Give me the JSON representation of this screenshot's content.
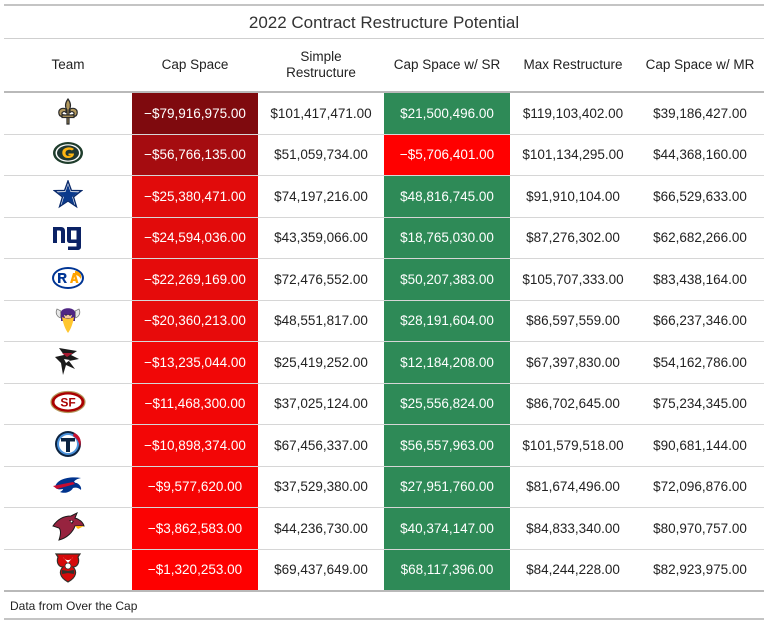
{
  "title": "2022 Contract Restructure Potential",
  "headers": {
    "team": "Team",
    "cap_space": "Cap Space",
    "simple_line1": "Simple",
    "simple_line2": "Restructure",
    "cap_sr": "Cap Space w/ SR",
    "max_restructure": "Max Restructure",
    "cap_mr": "Cap Space w/ MR"
  },
  "rows": [
    {
      "team": "saints-logo-icon",
      "cap": "−$79,916,975.00",
      "cap_color": "#7f0a0e",
      "simple": "$101,417,471.00",
      "sr": "$21,500,496.00",
      "sr_color": "#2e8a57",
      "max": "$119,103,402.00",
      "mr": "$39,186,427.00"
    },
    {
      "team": "packers-logo-icon",
      "cap": "−$56,766,135.00",
      "cap_color": "#a50c10",
      "simple": "$51,059,734.00",
      "sr": "−$5,706,401.00",
      "sr_color": "#ff0000",
      "max": "$101,134,295.00",
      "mr": "$44,368,160.00"
    },
    {
      "team": "cowboys-logo-icon",
      "cap": "−$25,380,471.00",
      "cap_color": "#e10b0b",
      "simple": "$74,197,216.00",
      "sr": "$48,816,745.00",
      "sr_color": "#2e8a57",
      "max": "$91,910,104.00",
      "mr": "$66,529,633.00"
    },
    {
      "team": "giants-logo-icon",
      "cap": "−$24,594,036.00",
      "cap_color": "#e20b0b",
      "simple": "$43,359,066.00",
      "sr": "$18,765,030.00",
      "sr_color": "#2e8a57",
      "max": "$87,276,302.00",
      "mr": "$62,682,266.00"
    },
    {
      "team": "rams-logo-icon",
      "cap": "−$22,269,169.00",
      "cap_color": "#e50b0b",
      "simple": "$72,476,552.00",
      "sr": "$50,207,383.00",
      "sr_color": "#2e8a57",
      "max": "$105,707,333.00",
      "mr": "$83,438,164.00"
    },
    {
      "team": "vikings-logo-icon",
      "cap": "−$20,360,213.00",
      "cap_color": "#e70b0b",
      "simple": "$48,551,817.00",
      "sr": "$28,191,604.00",
      "sr_color": "#2e8a57",
      "max": "$86,597,559.00",
      "mr": "$66,237,346.00"
    },
    {
      "team": "falcons-logo-icon",
      "cap": "−$13,235,044.00",
      "cap_color": "#f10707",
      "simple": "$25,419,252.00",
      "sr": "$12,184,208.00",
      "sr_color": "#2e8a57",
      "max": "$67,397,830.00",
      "mr": "$54,162,786.00"
    },
    {
      "team": "49ers-logo-icon",
      "cap": "−$11,468,300.00",
      "cap_color": "#f20606",
      "simple": "$37,025,124.00",
      "sr": "$25,556,824.00",
      "sr_color": "#2e8a57",
      "max": "$86,702,645.00",
      "mr": "$75,234,345.00"
    },
    {
      "team": "titans-logo-icon",
      "cap": "−$10,898,374.00",
      "cap_color": "#f30606",
      "simple": "$67,456,337.00",
      "sr": "$56,557,963.00",
      "sr_color": "#2e8a57",
      "max": "$101,579,518.00",
      "mr": "$90,681,144.00"
    },
    {
      "team": "bills-logo-icon",
      "cap": "−$9,577,620.00",
      "cap_color": "#f60404",
      "simple": "$37,529,380.00",
      "sr": "$27,951,760.00",
      "sr_color": "#2e8a57",
      "max": "$81,674,496.00",
      "mr": "$72,096,876.00"
    },
    {
      "team": "cardinals-logo-icon",
      "cap": "−$3,862,583.00",
      "cap_color": "#fb0202",
      "simple": "$44,236,730.00",
      "sr": "$40,374,147.00",
      "sr_color": "#2e8a57",
      "max": "$84,833,340.00",
      "mr": "$80,970,757.00"
    },
    {
      "team": "buccaneers-logo-icon",
      "cap": "−$1,320,253.00",
      "cap_color": "#fe0000",
      "simple": "$69,437,649.00",
      "sr": "$68,117,396.00",
      "sr_color": "#2e8a57",
      "max": "$84,244,228.00",
      "mr": "$82,923,975.00"
    }
  ],
  "footer": "Data from Over the Cap"
}
